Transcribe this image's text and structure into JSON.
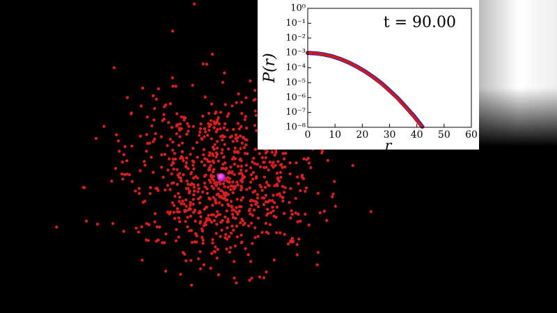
{
  "chart_data": {
    "type": "line",
    "annotation": "t = 90.00",
    "xlabel": "r",
    "ylabel": "P(r)",
    "x": [
      0,
      3,
      6,
      9,
      12,
      15,
      18,
      21,
      24,
      27,
      30,
      33,
      36,
      39,
      42
    ],
    "series": [
      {
        "name": "blue",
        "color": "#2b2bb0",
        "values": [
          0.001,
          0.00094,
          0.00079,
          0.00059,
          0.00039,
          0.00023,
          0.00012,
          5.7e-05,
          2.4e-05,
          9.2e-06,
          3e-06,
          9e-07,
          2.3e-07,
          5.5e-08,
          1.1e-08
        ]
      },
      {
        "name": "red",
        "color": "#d01818",
        "values": [
          0.001,
          0.00094,
          0.00079,
          0.00059,
          0.00039,
          0.00023,
          0.00012,
          5.6e-05,
          2.3e-05,
          8.7e-06,
          2.8e-06,
          8.3e-07,
          2.1e-07,
          5e-08,
          1e-08
        ]
      }
    ],
    "xlim": [
      0,
      60
    ],
    "xticks": [
      0,
      10,
      20,
      30,
      40,
      50,
      60
    ],
    "ylog": true,
    "ylim": [
      1e-08,
      1
    ],
    "yticks": [
      {
        "value": 1,
        "label": "10⁰"
      },
      {
        "value": 0.1,
        "label": "10⁻¹"
      },
      {
        "value": 0.01,
        "label": "10⁻²"
      },
      {
        "value": 0.001,
        "label": "10⁻³"
      },
      {
        "value": 0.0001,
        "label": "10⁻⁴"
      },
      {
        "value": 1e-05,
        "label": "10⁻⁵"
      },
      {
        "value": 1e-06,
        "label": "10⁻⁶"
      },
      {
        "value": 1e-07,
        "label": "10⁻⁷"
      },
      {
        "value": 1e-08,
        "label": "10⁻⁸"
      }
    ]
  }
}
